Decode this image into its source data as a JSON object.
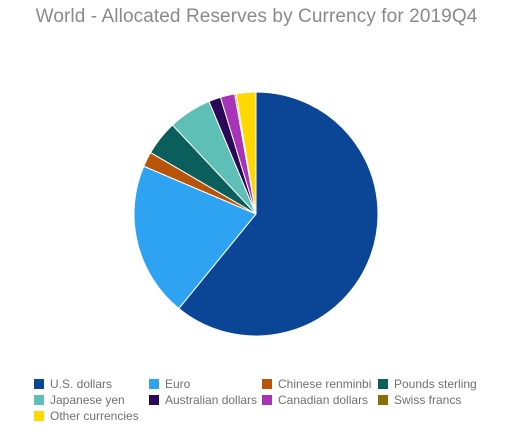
{
  "chart_data": {
    "type": "pie",
    "title": "World - Allocated Reserves by Currency for 2019Q4",
    "legend_position": "bottom",
    "slices": [
      {
        "label": "U.S. dollars",
        "value": 60.9,
        "color": "#0b4596"
      },
      {
        "label": "Euro",
        "value": 20.5,
        "color": "#2ea3f2"
      },
      {
        "label": "Chinese renminbi",
        "value": 2.0,
        "color": "#b8540a"
      },
      {
        "label": "Pounds sterling",
        "value": 4.6,
        "color": "#0a5e5c"
      },
      {
        "label": "Japanese yen",
        "value": 5.7,
        "color": "#5ebfb7"
      },
      {
        "label": "Australian dollars",
        "value": 1.6,
        "color": "#2a0a56"
      },
      {
        "label": "Canadian dollars",
        "value": 1.9,
        "color": "#a734b7"
      },
      {
        "label": "Swiss francs",
        "value": 0.2,
        "color": "#8a6d07"
      },
      {
        "label": "Other currencies",
        "value": 2.6,
        "color": "#ffd800"
      }
    ]
  }
}
